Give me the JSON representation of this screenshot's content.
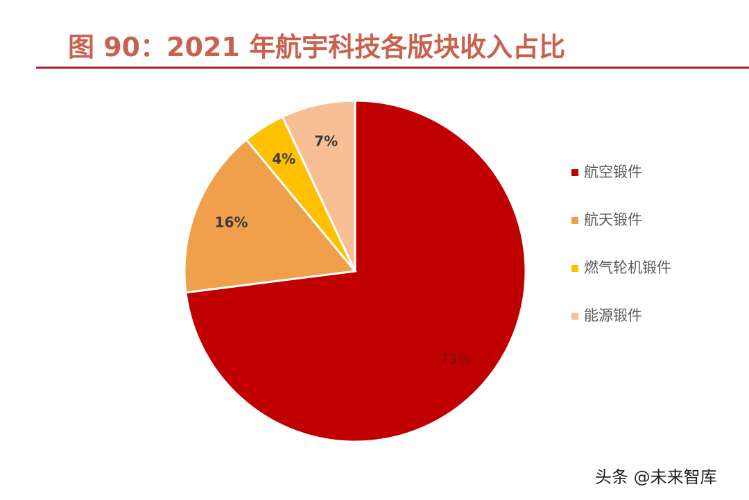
{
  "title": "图 90：2021 年航宇科技各版块收入占比",
  "colors": {
    "title": "#c8624e",
    "rule": "#b22222",
    "slice_border": "#ffffff"
  },
  "chart_data": {
    "type": "pie",
    "title": "图 90：2021 年航宇科技各版块收入占比",
    "legend_position": "right",
    "slices": [
      {
        "label": "航空锻件",
        "value": 73,
        "value_label": "73%",
        "color": "#c00000"
      },
      {
        "label": "航天锻件",
        "value": 16,
        "value_label": "16%",
        "color": "#f0a04b"
      },
      {
        "label": "燃气轮机锻件",
        "value": 4,
        "value_label": "4%",
        "color": "#ffc000"
      },
      {
        "label": "能源锻件",
        "value": 7,
        "value_label": "7%",
        "color": "#f8bf94"
      }
    ]
  },
  "watermark": {
    "text": "头条 @未来智库",
    "icon": "wechat-icon"
  }
}
